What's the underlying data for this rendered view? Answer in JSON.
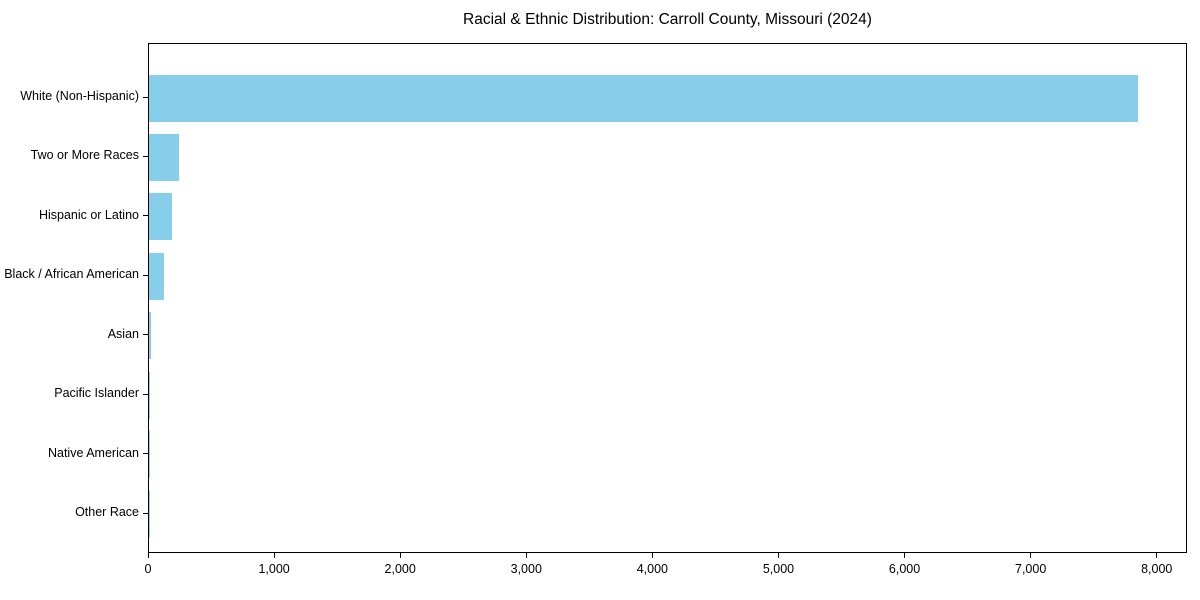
{
  "chart_data": {
    "type": "bar",
    "orientation": "horizontal",
    "title": "Racial & Ethnic Distribution: Carroll County, Missouri (2024)",
    "categories": [
      "White (Non-Hispanic)",
      "Two or More Races",
      "Hispanic or Latino",
      "Black / African American",
      "Asian",
      "Pacific Islander",
      "Native American",
      "Other Race"
    ],
    "values": [
      7845,
      238,
      186,
      121,
      15,
      3,
      6,
      2
    ],
    "xlabel": "",
    "ylabel": "",
    "xlim": [
      0,
      8240
    ],
    "xticks": [
      {
        "value": 0,
        "label": "0"
      },
      {
        "value": 1000,
        "label": "1,000"
      },
      {
        "value": 2000,
        "label": "2,000"
      },
      {
        "value": 3000,
        "label": "3,000"
      },
      {
        "value": 4000,
        "label": "4,000"
      },
      {
        "value": 5000,
        "label": "5,000"
      },
      {
        "value": 6000,
        "label": "6,000"
      },
      {
        "value": 7000,
        "label": "7,000"
      },
      {
        "value": 8000,
        "label": "8,000"
      }
    ],
    "grid": false,
    "legend": null,
    "bar_color": "#87CEEB",
    "axis_color": "#000000",
    "background_color": "#ffffff"
  }
}
